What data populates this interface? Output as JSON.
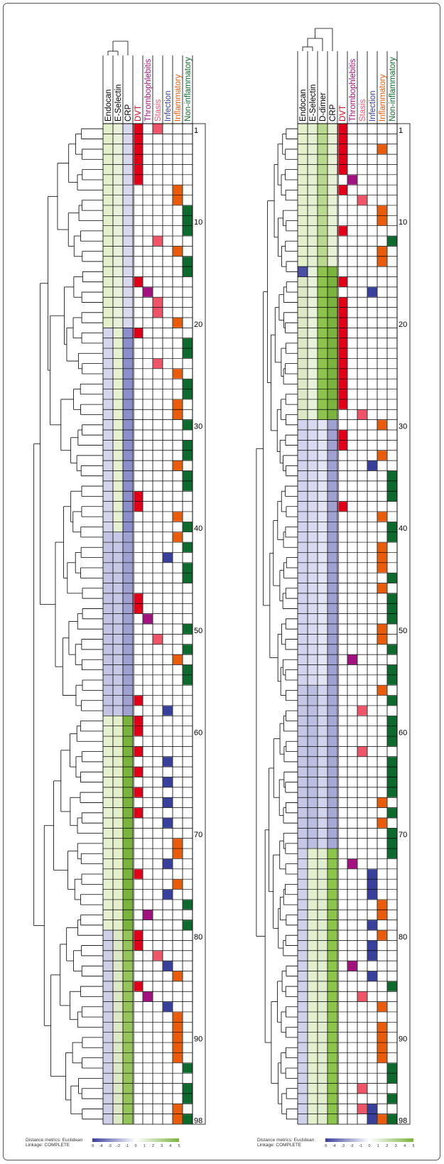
{
  "chart_data": [
    {
      "type": "heatmap",
      "panel": "left",
      "variables": [
        "Endocan",
        "E-Selectin",
        "CRP"
      ],
      "categories": [
        "DVT",
        "Thrombophlebitis",
        "Stasis",
        "Infection",
        "Inflammatory",
        "Non-inflammatory"
      ],
      "row_labels": [
        "1",
        "10",
        "20",
        "30",
        "40",
        "50",
        "60",
        "70",
        "80",
        "90",
        "98"
      ],
      "row_label_at": [
        1,
        10,
        20,
        30,
        40,
        50,
        60,
        70,
        80,
        90,
        98
      ],
      "n_rows": 98,
      "variable_segments": [
        [
          [
            1,
            20,
            "#e3f0cb"
          ],
          [
            21,
            40,
            "#d5d6ec"
          ],
          [
            41,
            58,
            "#c3c4e2"
          ],
          [
            59,
            79,
            "#e5f1d0"
          ],
          [
            80,
            98,
            "#cfd0e8"
          ]
        ],
        [
          [
            1,
            20,
            "#e9f2d8"
          ],
          [
            21,
            40,
            "#e7f1d2"
          ],
          [
            41,
            58,
            "#c7c8e5"
          ],
          [
            59,
            79,
            "#e4f0cc"
          ],
          [
            80,
            98,
            "#dde9c6"
          ]
        ],
        [
          [
            1,
            20,
            "#d8d9ee"
          ],
          [
            21,
            40,
            "#8c8fc9"
          ],
          [
            41,
            58,
            "#9fa1d1"
          ],
          [
            59,
            79,
            "#7ab33e"
          ],
          [
            80,
            98,
            "#94c45a"
          ]
        ]
      ],
      "category_cells": [
        [
          1,
          3,
          "DVT"
        ],
        [
          1,
          1,
          "Stasis"
        ],
        [
          3,
          4,
          "DVT"
        ],
        [
          5,
          6,
          "DVT"
        ],
        [
          7,
          8,
          "Inflammatory"
        ],
        [
          9,
          11,
          "Non-inflammatory"
        ],
        [
          12,
          12,
          "Stasis"
        ],
        [
          13,
          13,
          "Inflammatory"
        ],
        [
          14,
          15,
          "Non-inflammatory"
        ],
        [
          16,
          16,
          "DVT"
        ],
        [
          17,
          17,
          "Thrombophlebitis"
        ],
        [
          18,
          19,
          "Stasis"
        ],
        [
          20,
          20,
          "Inflammatory"
        ],
        [
          21,
          21,
          "DVT"
        ],
        [
          22,
          23,
          "Non-inflammatory"
        ],
        [
          24,
          24,
          "Stasis"
        ],
        [
          25,
          25,
          "Inflammatory"
        ],
        [
          26,
          27,
          "Non-inflammatory"
        ],
        [
          28,
          29,
          "Inflammatory"
        ],
        [
          30,
          30,
          "Non-inflammatory"
        ],
        [
          32,
          33,
          "Non-inflammatory"
        ],
        [
          34,
          34,
          "Inflammatory"
        ],
        [
          35,
          36,
          "Non-inflammatory"
        ],
        [
          37,
          38,
          "DVT"
        ],
        [
          39,
          39,
          "Inflammatory"
        ],
        [
          40,
          40,
          "Non-inflammatory"
        ],
        [
          41,
          41,
          "Inflammatory"
        ],
        [
          42,
          42,
          "Non-inflammatory"
        ],
        [
          43,
          43,
          "Infection"
        ],
        [
          44,
          45,
          "Non-inflammatory"
        ],
        [
          47,
          48,
          "DVT"
        ],
        [
          49,
          49,
          "Thrombophlebitis"
        ],
        [
          50,
          50,
          "Non-inflammatory"
        ],
        [
          51,
          51,
          "Stasis"
        ],
        [
          52,
          52,
          "Non-inflammatory"
        ],
        [
          53,
          53,
          "Inflammatory"
        ],
        [
          54,
          55,
          "Non-inflammatory"
        ],
        [
          57,
          57,
          "DVT"
        ],
        [
          58,
          58,
          "Infection"
        ],
        [
          59,
          60,
          "DVT"
        ],
        [
          62,
          62,
          "DVT"
        ],
        [
          63,
          63,
          "Infection"
        ],
        [
          64,
          64,
          "DVT"
        ],
        [
          65,
          65,
          "Infection"
        ],
        [
          66,
          66,
          "DVT"
        ],
        [
          67,
          67,
          "Infection"
        ],
        [
          68,
          68,
          "DVT"
        ],
        [
          69,
          69,
          "Infection"
        ],
        [
          71,
          72,
          "Inflammatory"
        ],
        [
          73,
          73,
          "Infection"
        ],
        [
          74,
          74,
          "DVT"
        ],
        [
          75,
          75,
          "Inflammatory"
        ],
        [
          76,
          76,
          "Infection"
        ],
        [
          77,
          77,
          "Non-inflammatory"
        ],
        [
          78,
          78,
          "Thrombophlebitis"
        ],
        [
          79,
          79,
          "Non-inflammatory"
        ],
        [
          80,
          81,
          "DVT"
        ],
        [
          82,
          82,
          "Stasis"
        ],
        [
          83,
          83,
          "Infection"
        ],
        [
          84,
          84,
          "Inflammatory"
        ],
        [
          85,
          85,
          "DVT"
        ],
        [
          86,
          86,
          "Thrombophlebitis"
        ],
        [
          87,
          87,
          "Infection"
        ],
        [
          88,
          92,
          "Inflammatory"
        ],
        [
          93,
          93,
          "Non-inflammatory"
        ],
        [
          95,
          96,
          "Non-inflammatory"
        ],
        [
          97,
          98,
          "Inflammatory"
        ],
        [
          98,
          98,
          "Non-inflammatory"
        ]
      ],
      "footnote": [
        "Distance metrics: Euclidean",
        "Linkage: COMPLETE"
      ],
      "color_scale": {
        "min": -5,
        "max": 5,
        "ticks": [
          "-5",
          "-4",
          "-3",
          "-2",
          "-1",
          "0",
          "1",
          "2",
          "3",
          "4",
          "5"
        ],
        "low": "#3a3f9a",
        "mid": "#ffffff",
        "high": "#7ab33e"
      }
    },
    {
      "type": "heatmap",
      "panel": "right",
      "variables": [
        "Endocan",
        "E-Selectin",
        "D-dimer",
        "CRP"
      ],
      "categories": [
        "DVT",
        "Thrombophlebitis",
        "Stasis",
        "Infection",
        "Inflammatory",
        "Non-inflammatory"
      ],
      "row_labels": [
        "1",
        "10",
        "20",
        "30",
        "40",
        "50",
        "60",
        "70",
        "80",
        "90",
        "98"
      ],
      "row_label_at": [
        1,
        10,
        20,
        30,
        40,
        50,
        60,
        70,
        80,
        90,
        98
      ],
      "n_rows": 98,
      "variable_segments": [
        [
          [
            1,
            14,
            "#e3f0cb"
          ],
          [
            15,
            15,
            "#4a4fa3"
          ],
          [
            16,
            29,
            "#dde9c6"
          ],
          [
            30,
            55,
            "#d2d3ec"
          ],
          [
            56,
            71,
            "#c6c7e4"
          ],
          [
            72,
            98,
            "#d0d1ea"
          ]
        ],
        [
          [
            1,
            14,
            "#e5f0d2"
          ],
          [
            15,
            29,
            "#e8f1d9"
          ],
          [
            30,
            55,
            "#d9daef"
          ],
          [
            56,
            71,
            "#bcbee0"
          ],
          [
            72,
            98,
            "#e3f0cb"
          ]
        ],
        [
          [
            1,
            14,
            "#b9da8e"
          ],
          [
            15,
            29,
            "#8cc44c"
          ],
          [
            30,
            55,
            "#e4e5f3"
          ],
          [
            56,
            71,
            "#d2d3ec"
          ],
          [
            72,
            98,
            "#e0eecf"
          ]
        ],
        [
          [
            1,
            14,
            "#e7f1d5"
          ],
          [
            15,
            29,
            "#7ab33e"
          ],
          [
            30,
            55,
            "#9fa1d1"
          ],
          [
            56,
            71,
            "#a7a9d5"
          ],
          [
            72,
            98,
            "#8cc44c"
          ]
        ]
      ],
      "category_cells": [
        [
          1,
          5,
          "DVT"
        ],
        [
          3,
          3,
          "Inflammatory"
        ],
        [
          6,
          6,
          "Thrombophlebitis"
        ],
        [
          7,
          7,
          "DVT"
        ],
        [
          8,
          8,
          "Stasis"
        ],
        [
          9,
          10,
          "Inflammatory"
        ],
        [
          11,
          11,
          "DVT"
        ],
        [
          12,
          12,
          "Non-inflammatory"
        ],
        [
          13,
          14,
          "Inflammatory"
        ],
        [
          16,
          16,
          "DVT"
        ],
        [
          17,
          17,
          "Infection"
        ],
        [
          18,
          28,
          "DVT"
        ],
        [
          29,
          29,
          "Stasis"
        ],
        [
          30,
          30,
          "Inflammatory"
        ],
        [
          31,
          32,
          "DVT"
        ],
        [
          33,
          33,
          "Inflammatory"
        ],
        [
          34,
          34,
          "Infection"
        ],
        [
          35,
          37,
          "Non-inflammatory"
        ],
        [
          38,
          38,
          "DVT"
        ],
        [
          39,
          39,
          "Inflammatory"
        ],
        [
          40,
          41,
          "Non-inflammatory"
        ],
        [
          42,
          44,
          "Inflammatory"
        ],
        [
          45,
          45,
          "Non-inflammatory"
        ],
        [
          46,
          46,
          "Inflammatory"
        ],
        [
          47,
          49,
          "Non-inflammatory"
        ],
        [
          50,
          51,
          "Inflammatory"
        ],
        [
          52,
          52,
          "Non-inflammatory"
        ],
        [
          53,
          53,
          "Thrombophlebitis"
        ],
        [
          54,
          55,
          "Non-inflammatory"
        ],
        [
          56,
          56,
          "Inflammatory"
        ],
        [
          57,
          57,
          "Non-inflammatory"
        ],
        [
          58,
          58,
          "Stasis"
        ],
        [
          59,
          61,
          "Non-inflammatory"
        ],
        [
          62,
          62,
          "Stasis"
        ],
        [
          63,
          66,
          "Non-inflammatory"
        ],
        [
          67,
          67,
          "Inflammatory"
        ],
        [
          68,
          68,
          "Non-inflammatory"
        ],
        [
          69,
          69,
          "Inflammatory"
        ],
        [
          70,
          72,
          "Non-inflammatory"
        ],
        [
          73,
          73,
          "Thrombophlebitis"
        ],
        [
          74,
          76,
          "Infection"
        ],
        [
          77,
          78,
          "Inflammatory"
        ],
        [
          79,
          79,
          "Infection"
        ],
        [
          80,
          80,
          "Inflammatory"
        ],
        [
          81,
          82,
          "Infection"
        ],
        [
          83,
          83,
          "Thrombophlebitis"
        ],
        [
          84,
          84,
          "Infection"
        ],
        [
          85,
          85,
          "Non-inflammatory"
        ],
        [
          86,
          86,
          "Stasis"
        ],
        [
          87,
          87,
          "Inflammatory"
        ],
        [
          89,
          92,
          "Inflammatory"
        ],
        [
          93,
          94,
          "Non-inflammatory"
        ],
        [
          95,
          95,
          "Stasis"
        ],
        [
          96,
          96,
          "Non-inflammatory"
        ],
        [
          97,
          97,
          "Stasis"
        ],
        [
          98,
          98,
          "Non-inflammatory"
        ],
        [
          98,
          98,
          "Inflammatory"
        ],
        [
          97,
          98,
          "Infection"
        ]
      ],
      "footnote": [
        "Distance metrics: Euclidean",
        "Linkage: COMPLETE"
      ],
      "color_scale": {
        "min": -5,
        "max": 5,
        "ticks": [
          "-5",
          "-4",
          "-3",
          "-2",
          "-1",
          "0",
          "1",
          "2",
          "3",
          "4",
          "5"
        ],
        "low": "#3a3f9a",
        "mid": "#ffffff",
        "high": "#7ab33e"
      }
    }
  ],
  "colors": {
    "DVT": "#e10018",
    "Thrombophlebitis": "#a0137e",
    "Stasis": "#ee5568",
    "Infection": "#37409b",
    "Inflammatory": "#e95c0c",
    "Non-inflammatory": "#0d6a2c",
    "header_variable": "#000000",
    "header_DVT": "#e10018",
    "header_Thrombophlebitis": "#a0137e",
    "header_Stasis": "#ee5568",
    "header_Infection": "#37409b",
    "header_Inflammatory": "#e95c0c",
    "header_Non-inflammatory": "#0d6a2c"
  }
}
